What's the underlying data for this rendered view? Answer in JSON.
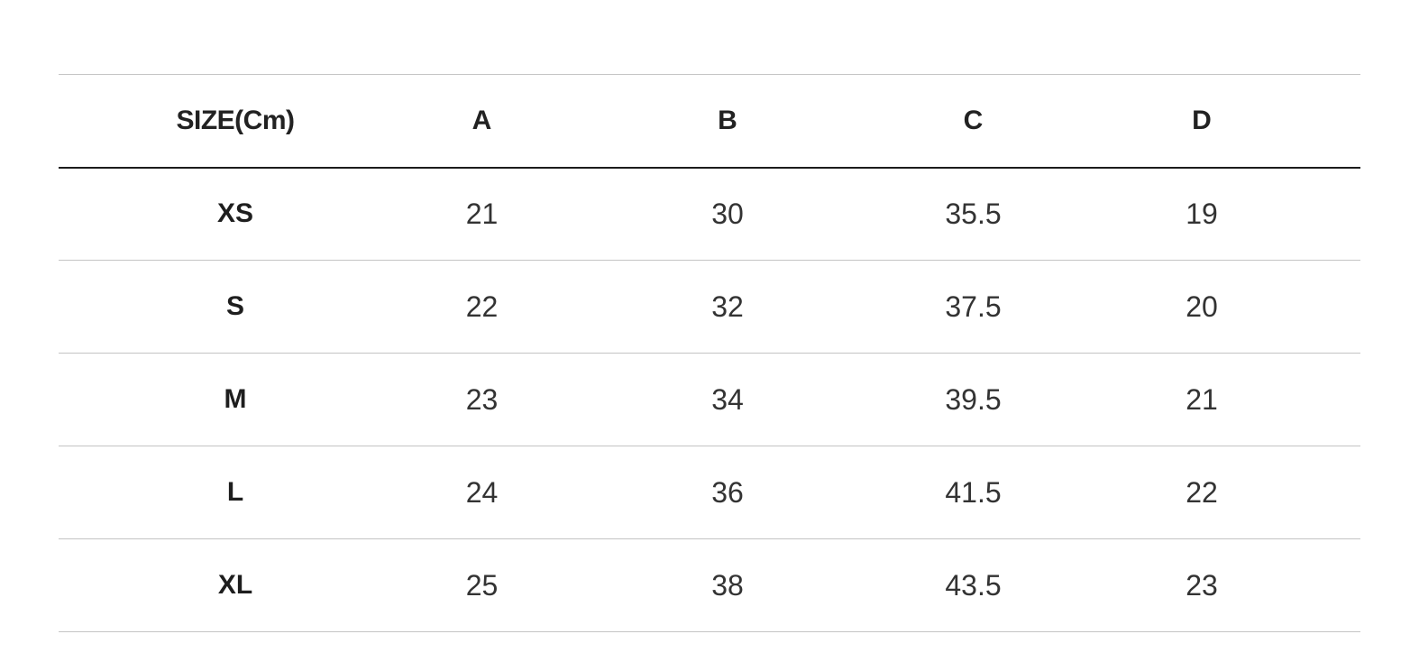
{
  "table": {
    "headers": [
      "SIZE(Cm)",
      "A",
      "B",
      "C",
      "D"
    ],
    "rows": [
      [
        "XS",
        "21",
        "30",
        "35.5",
        "19"
      ],
      [
        "S",
        "22",
        "32",
        "37.5",
        "20"
      ],
      [
        "M",
        "23",
        "34",
        "39.5",
        "21"
      ],
      [
        "L",
        "24",
        "36",
        "41.5",
        "22"
      ],
      [
        "XL",
        "25",
        "38",
        "43.5",
        "23"
      ]
    ]
  },
  "colors": {
    "header_rule": "#1c1c1c",
    "row_rule": "#c4c4c4",
    "text": "#222222"
  }
}
